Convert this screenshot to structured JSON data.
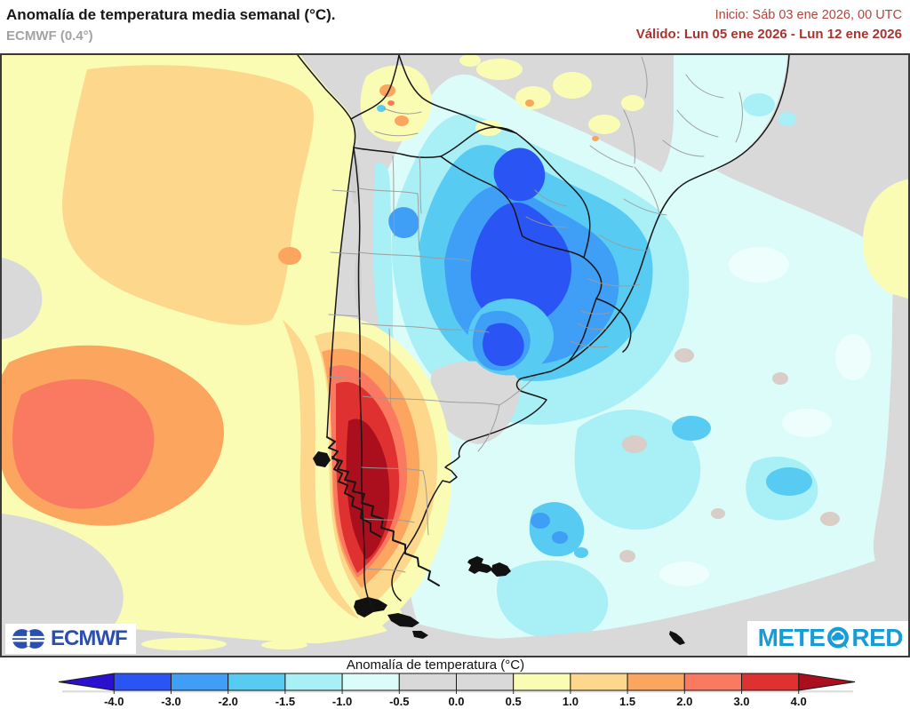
{
  "header": {
    "title": "Anomalía de temperatura media semanal (°C).",
    "model": "ECMWF (0.4°)",
    "init": "Inicio: Sáb 03 ene 2026, 00 UTC",
    "valid": "Válido: Lun 05 ene 2026 - Lun 12 ene 2026"
  },
  "colorbar": {
    "title": "Anomalía de temperatura (°C)",
    "ticks": [
      "-4.0",
      "-3.0",
      "-2.0",
      "-1.5",
      "-1.0",
      "-0.5",
      "0.0",
      "0.5",
      "1.0",
      "1.5",
      "2.0",
      "3.0",
      "4.0"
    ],
    "cells": [
      "m3",
      "m2",
      "m15",
      "m1",
      "m05",
      "z",
      "z",
      "p1",
      "p15",
      "p2",
      "p3",
      "p4"
    ],
    "left_arrow": "m4",
    "right_arrow": "p4p"
  },
  "palette": {
    "m4": "#2b10d0",
    "m3": "#2a55f4",
    "m2": "#3f9ef5",
    "m15": "#58cbf3",
    "m1": "#a8eff6",
    "m05": "#dcfcf9",
    "z": "#d9d9d9",
    "p1": "#fbfcb4",
    "p15": "#fdd78c",
    "p2": "#fba55f",
    "p3": "#f97961",
    "p4": "#e03131",
    "p4p": "#ab0f1e",
    "ow": "#edfefc",
    "wg": "#d9cec7",
    "relief": "#c9c9c9",
    "map_bg": "#d9d9d9",
    "island": "#111111",
    "land_border": "#161616",
    "admin_border": "#9b9b9b",
    "ecmwf_blue": "#2a4fae",
    "meteored_blue": "#189cd7"
  },
  "logos": {
    "ecmwf_text": "ECMWF",
    "meteored_left": "METE",
    "meteored_right": "RED"
  },
  "chart_data": {
    "type": "heatmap",
    "title": "Anomalía de temperatura media semanal (°C).",
    "model": "ECMWF (0.4°)",
    "init_time": "Sáb 03 ene 2026, 00 UTC",
    "valid_period": "Lun 05 ene 2026 - Lun 12 ene 2026",
    "legend_title": "Anomalía de temperatura (°C)",
    "legend_position": "bottom",
    "scale_ticks": [
      -4.0,
      -3.0,
      -2.0,
      -1.5,
      -1.0,
      -0.5,
      0.0,
      0.5,
      1.0,
      1.5,
      2.0,
      3.0,
      4.0
    ],
    "region": "Southern South America (Argentina, Chile, Uruguay, Paraguay, S Brazil) and adjacent Pacific/Atlantic oceans",
    "features": [
      {
        "area": "Southern Andes / western Patagonia (S Chile - SW Argentina)",
        "anomaly_c": "> +4.0 core, +2 to +4 ring"
      },
      {
        "area": "Southeast Pacific offshore blob (left of Chile)",
        "anomaly_c": "+1.5 to +3.0"
      },
      {
        "area": "Northeast Pacific sector of map",
        "anomaly_c": "+0.5 to +1.5"
      },
      {
        "area": "Northern Argentina / Chaco / Paraguay / Uruguay",
        "anomaly_c": "-2.0 to -4.0 core"
      },
      {
        "area": "South Atlantic off Buenos Aires",
        "anomaly_c": "-1.5 to -3.0 patch"
      },
      {
        "area": "Open South Atlantic",
        "anomaly_c": "-0.5 to -1.5"
      },
      {
        "area": "Central-east Brazil",
        "anomaly_c": "-0.5 to +1.0 (near neutral with yellow patches)"
      },
      {
        "area": "Bolivian Altiplano spots",
        "anomaly_c": "+1.0 to +2.0"
      }
    ]
  }
}
